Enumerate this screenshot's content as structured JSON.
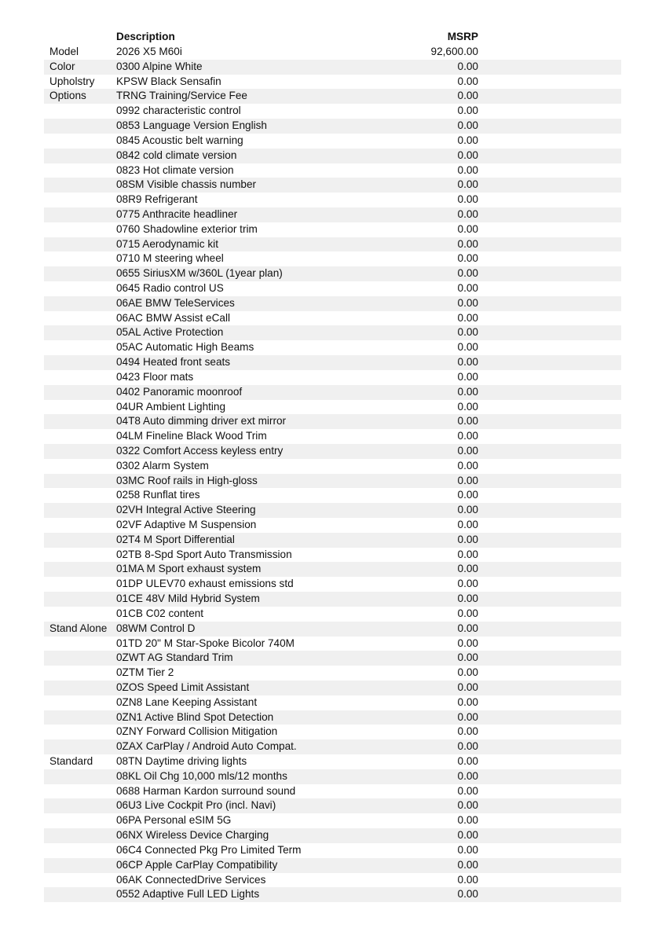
{
  "header": {
    "description": "Description",
    "msrp": "MSRP"
  },
  "rows": [
    {
      "category": "Model",
      "description": "2026 X5 M60i",
      "msrp": "92,600.00"
    },
    {
      "category": "Color",
      "description": "0300 Alpine White",
      "msrp": "0.00"
    },
    {
      "category": "Upholstry",
      "description": "KPSW Black Sensafin",
      "msrp": "0.00"
    },
    {
      "category": "Options",
      "description": "TRNG Training/Service Fee",
      "msrp": "0.00"
    },
    {
      "category": "",
      "description": "0992 characteristic control",
      "msrp": "0.00"
    },
    {
      "category": "",
      "description": "0853 Language Version English",
      "msrp": "0.00"
    },
    {
      "category": "",
      "description": "0845 Acoustic belt warning",
      "msrp": "0.00"
    },
    {
      "category": "",
      "description": "0842 cold climate version",
      "msrp": "0.00"
    },
    {
      "category": "",
      "description": "0823 Hot climate version",
      "msrp": "0.00"
    },
    {
      "category": "",
      "description": "08SM Visible chassis number",
      "msrp": "0.00"
    },
    {
      "category": "",
      "description": "08R9 Refrigerant",
      "msrp": "0.00"
    },
    {
      "category": "",
      "description": "0775 Anthracite headliner",
      "msrp": "0.00"
    },
    {
      "category": "",
      "description": "0760 Shadowline exterior trim",
      "msrp": "0.00"
    },
    {
      "category": "",
      "description": "0715 Aerodynamic kit",
      "msrp": "0.00"
    },
    {
      "category": "",
      "description": "0710 M steering wheel",
      "msrp": "0.00"
    },
    {
      "category": "",
      "description": "0655 SiriusXM w/360L (1year plan)",
      "msrp": "0.00"
    },
    {
      "category": "",
      "description": "0645 Radio control US",
      "msrp": "0.00"
    },
    {
      "category": "",
      "description": "06AE BMW TeleServices",
      "msrp": "0.00"
    },
    {
      "category": "",
      "description": "06AC BMW Assist eCall",
      "msrp": "0.00"
    },
    {
      "category": "",
      "description": "05AL Active Protection",
      "msrp": "0.00"
    },
    {
      "category": "",
      "description": "05AC Automatic High Beams",
      "msrp": "0.00"
    },
    {
      "category": "",
      "description": "0494 Heated front seats",
      "msrp": "0.00"
    },
    {
      "category": "",
      "description": "0423 Floor mats",
      "msrp": "0.00"
    },
    {
      "category": "",
      "description": "0402 Panoramic moonroof",
      "msrp": "0.00"
    },
    {
      "category": "",
      "description": "04UR Ambient Lighting",
      "msrp": "0.00"
    },
    {
      "category": "",
      "description": "04T8 Auto dimming driver ext mirror",
      "msrp": "0.00"
    },
    {
      "category": "",
      "description": "04LM Fineline Black Wood Trim",
      "msrp": "0.00"
    },
    {
      "category": "",
      "description": "0322 Comfort Access keyless entry",
      "msrp": "0.00"
    },
    {
      "category": "",
      "description": "0302 Alarm System",
      "msrp": "0.00"
    },
    {
      "category": "",
      "description": "03MC Roof rails in High-gloss",
      "msrp": "0.00"
    },
    {
      "category": "",
      "description": "0258 Runflat tires",
      "msrp": "0.00"
    },
    {
      "category": "",
      "description": "02VH Integral Active Steering",
      "msrp": "0.00"
    },
    {
      "category": "",
      "description": "02VF Adaptive M Suspension",
      "msrp": "0.00"
    },
    {
      "category": "",
      "description": "02T4 M Sport Differential",
      "msrp": "0.00"
    },
    {
      "category": "",
      "description": "02TB 8-Spd Sport Auto Transmission",
      "msrp": "0.00"
    },
    {
      "category": "",
      "description": "01MA M Sport exhaust system",
      "msrp": "0.00"
    },
    {
      "category": "",
      "description": "01DP ULEV70 exhaust emissions std",
      "msrp": "0.00"
    },
    {
      "category": "",
      "description": "01CE 48V Mild Hybrid System",
      "msrp": "0.00"
    },
    {
      "category": "",
      "description": "01CB C02 content",
      "msrp": "0.00"
    },
    {
      "category": "Stand Alone",
      "description": "08WM Control D",
      "msrp": "0.00"
    },
    {
      "category": "",
      "description": "01TD 20\" M Star-Spoke Bicolor 740M",
      "msrp": "0.00"
    },
    {
      "category": "",
      "description": "0ZWT AG Standard Trim",
      "msrp": "0.00"
    },
    {
      "category": "",
      "description": "0ZTM Tier 2",
      "msrp": "0.00"
    },
    {
      "category": "",
      "description": "0ZOS Speed Limit Assistant",
      "msrp": "0.00"
    },
    {
      "category": "",
      "description": "0ZN8 Lane Keeping Assistant",
      "msrp": "0.00"
    },
    {
      "category": "",
      "description": "0ZN1 Active Blind Spot Detection",
      "msrp": "0.00"
    },
    {
      "category": "",
      "description": "0ZNY Forward Collision Mitigation",
      "msrp": "0.00"
    },
    {
      "category": "",
      "description": "0ZAX CarPlay / Android Auto Compat.",
      "msrp": "0.00"
    },
    {
      "category": "Standard",
      "description": "08TN Daytime driving lights",
      "msrp": "0.00"
    },
    {
      "category": "",
      "description": "08KL Oil Chg 10,000 mls/12 months",
      "msrp": "0.00"
    },
    {
      "category": "",
      "description": "0688 Harman Kardon surround sound",
      "msrp": "0.00"
    },
    {
      "category": "",
      "description": "06U3 Live Cockpit Pro (incl. Navi)",
      "msrp": "0.00"
    },
    {
      "category": "",
      "description": "06PA Personal eSIM 5G",
      "msrp": "0.00"
    },
    {
      "category": "",
      "description": "06NX Wireless Device Charging",
      "msrp": "0.00"
    },
    {
      "category": "",
      "description": "06C4 Connected Pkg Pro Limited Term",
      "msrp": "0.00"
    },
    {
      "category": "",
      "description": "06CP Apple CarPlay Compatibility",
      "msrp": "0.00"
    },
    {
      "category": "",
      "description": "06AK ConnectedDrive Services",
      "msrp": "0.00"
    },
    {
      "category": "",
      "description": "0552 Adaptive Full LED Lights",
      "msrp": "0.00"
    }
  ]
}
